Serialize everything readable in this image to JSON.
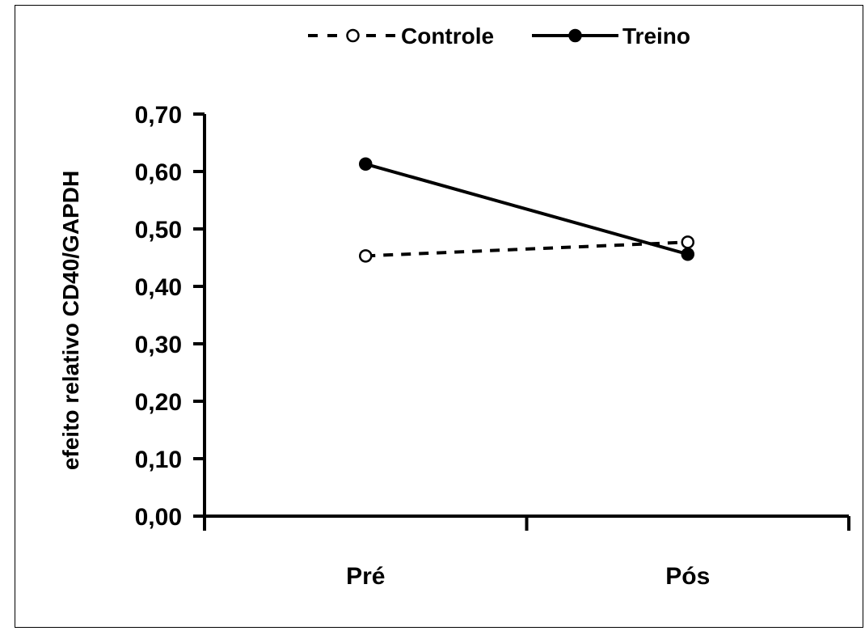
{
  "chart_data": {
    "type": "line",
    "categories": [
      "Pré",
      "Pós"
    ],
    "series": [
      {
        "name": "Controle",
        "values": [
          0.453,
          0.477
        ],
        "style": "dashed",
        "marker": "open-circle",
        "color": "#000000"
      },
      {
        "name": "Treino",
        "values": [
          0.613,
          0.456
        ],
        "style": "solid",
        "marker": "filled-circle",
        "color": "#000000"
      }
    ],
    "ylabel": "efeito relativo CD40/GAPDH",
    "xlabel": "",
    "ylim": [
      0,
      0.7
    ],
    "yticks": [
      "0,00",
      "0,10",
      "0,20",
      "0,30",
      "0,40",
      "0,50",
      "0,60",
      "0,70"
    ],
    "legend_position": "top-center",
    "grid": false
  }
}
